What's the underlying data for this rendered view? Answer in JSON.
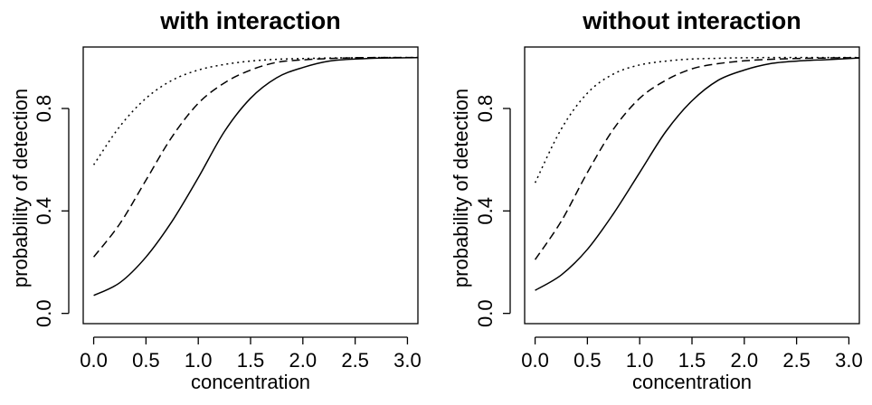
{
  "chart_data": [
    {
      "type": "line",
      "title": "with interaction",
      "xlabel": "concentration",
      "ylabel": "probability of detection",
      "xlim": [
        -0.1,
        3.1
      ],
      "ylim": [
        -0.04,
        1.04
      ],
      "xticks": [
        "0.0",
        "0.5",
        "1.0",
        "1.5",
        "2.0",
        "2.5",
        "3.0"
      ],
      "yticks": [
        "0.0",
        "0.4",
        "0.8"
      ],
      "x": [
        0.0,
        0.25,
        0.5,
        0.75,
        1.0,
        1.25,
        1.5,
        1.75,
        2.0,
        2.25,
        2.5,
        2.75,
        3.0,
        3.1
      ],
      "series": [
        {
          "line_style": "solid",
          "values": [
            0.07,
            0.12,
            0.22,
            0.36,
            0.53,
            0.71,
            0.84,
            0.92,
            0.96,
            0.985,
            0.993,
            0.997,
            0.998,
            0.999
          ]
        },
        {
          "line_style": "dashed",
          "values": [
            0.22,
            0.35,
            0.52,
            0.69,
            0.82,
            0.9,
            0.95,
            0.98,
            0.99,
            0.995,
            0.998,
            0.999,
            0.999,
            0.999
          ]
        },
        {
          "line_style": "dotted",
          "values": [
            0.58,
            0.73,
            0.84,
            0.91,
            0.95,
            0.972,
            0.985,
            0.992,
            0.995,
            0.997,
            0.998,
            0.999,
            0.999,
            0.999
          ]
        }
      ]
    },
    {
      "type": "line",
      "title": "without interaction",
      "xlabel": "concentration",
      "ylabel": "probability of detection",
      "xlim": [
        -0.1,
        3.1
      ],
      "ylim": [
        -0.04,
        1.04
      ],
      "xticks": [
        "0.0",
        "0.5",
        "1.0",
        "1.5",
        "2.0",
        "2.5",
        "3.0"
      ],
      "yticks": [
        "0.0",
        "0.4",
        "0.8"
      ],
      "x": [
        0.0,
        0.25,
        0.5,
        0.75,
        1.0,
        1.25,
        1.5,
        1.75,
        2.0,
        2.25,
        2.5,
        2.75,
        3.0,
        3.1
      ],
      "series": [
        {
          "line_style": "solid",
          "values": [
            0.09,
            0.15,
            0.25,
            0.39,
            0.55,
            0.71,
            0.83,
            0.91,
            0.95,
            0.975,
            0.985,
            0.99,
            0.995,
            0.997
          ]
        },
        {
          "line_style": "dashed",
          "values": [
            0.21,
            0.36,
            0.55,
            0.72,
            0.84,
            0.91,
            0.955,
            0.975,
            0.986,
            0.992,
            0.995,
            0.997,
            0.998,
            0.998
          ]
        },
        {
          "line_style": "dotted",
          "values": [
            0.51,
            0.72,
            0.86,
            0.935,
            0.97,
            0.985,
            0.993,
            0.996,
            0.998,
            0.999,
            0.999,
            0.999,
            0.999,
            0.999
          ]
        }
      ]
    }
  ]
}
